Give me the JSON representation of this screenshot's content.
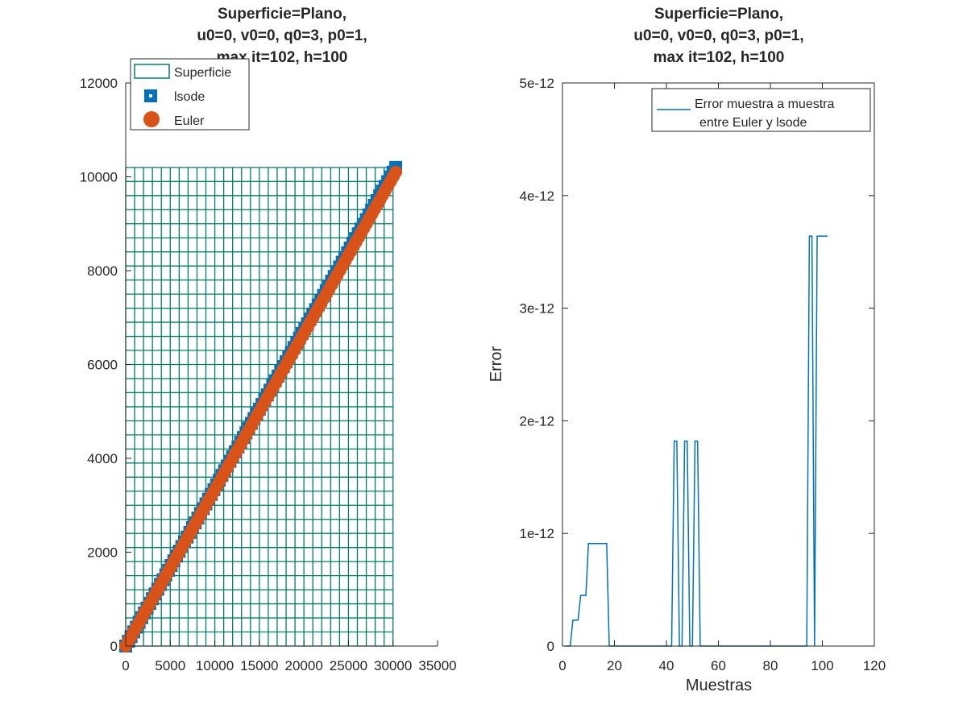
{
  "chart_data": [
    {
      "type": "scatter",
      "title_lines": [
        "Superficie=Plano,",
        "u0=0, v0=0, q0=3, p0=1,",
        "max it=102, h=100"
      ],
      "xlabel": "",
      "ylabel": "",
      "xlim": [
        0,
        35000
      ],
      "ylim": [
        0,
        12000
      ],
      "xticks": [
        0,
        5000,
        10000,
        15000,
        20000,
        25000,
        30000,
        35000
      ],
      "xtick_labels": [
        "0",
        "5000",
        "10000",
        "15000",
        "20000",
        "25000",
        "30000",
        "35000"
      ],
      "yticks": [
        0,
        2000,
        4000,
        6000,
        8000,
        10000,
        12000
      ],
      "ytick_labels": [
        "0",
        "2000",
        "4000",
        "6000",
        "8000",
        "10000",
        "12000"
      ],
      "legend_placement": "top-left",
      "series": [
        {
          "name": "Superficie",
          "kind": "mesh",
          "color": "#007f66",
          "x_range": [
            0,
            30000
          ],
          "y_range": [
            0,
            10200
          ],
          "x_step": 1000,
          "y_step": 300
        },
        {
          "name": "lsode",
          "kind": "square-markers",
          "color": "#0072bd",
          "x_start": 0,
          "x_end": 30300,
          "y_start": 0,
          "y_end": 10200,
          "count": 102
        },
        {
          "name": "Euler",
          "kind": "circle-markers",
          "color": "#d95319",
          "x_start": 0,
          "x_end": 30300,
          "y_start": 0,
          "y_end": 10100,
          "count": 102
        }
      ]
    },
    {
      "type": "line",
      "title_lines": [
        "Superficie=Plano,",
        "u0=0, v0=0, q0=3, p0=1,",
        "max it=102, h=100"
      ],
      "xlabel": "Muestras",
      "ylabel": "Error",
      "xlim": [
        0,
        120
      ],
      "ylim": [
        0,
        5e-12
      ],
      "xticks": [
        0,
        20,
        40,
        60,
        80,
        100,
        120
      ],
      "xtick_labels": [
        "0",
        "20",
        "40",
        "60",
        "80",
        "100",
        "120"
      ],
      "yticks": [
        0,
        1e-12,
        2e-12,
        3e-12,
        4e-12,
        5e-12
      ],
      "ytick_labels": [
        "0",
        "1e-12",
        "2e-12",
        "3e-12",
        "4e-12",
        "5e-12"
      ],
      "legend_placement": "top-right",
      "series": [
        {
          "name_lines": [
            "Error muestra a muestra",
            "entre Euler y lsode"
          ],
          "color": "#0072bd",
          "x": [
            1,
            2,
            3,
            4,
            5,
            6,
            7,
            8,
            9,
            10,
            11,
            12,
            13,
            14,
            15,
            16,
            17,
            18,
            19,
            20,
            25,
            30,
            35,
            40,
            42,
            43,
            44,
            45,
            46,
            47,
            48,
            49,
            50,
            51,
            52,
            53,
            54,
            55,
            56,
            57,
            60,
            70,
            80,
            90,
            94,
            95,
            96,
            97,
            98,
            99,
            100,
            101,
            102
          ],
          "y": [
            0,
            0,
            0,
            2.3e-13,
            2.3e-13,
            2.3e-13,
            4.5e-13,
            4.5e-13,
            4.5e-13,
            9.1e-13,
            9.1e-13,
            9.1e-13,
            9.1e-13,
            9.1e-13,
            9.1e-13,
            9.1e-13,
            9.1e-13,
            0,
            0,
            0,
            0,
            0,
            0,
            0,
            0,
            1.82e-12,
            1.82e-12,
            0,
            0,
            1.82e-12,
            1.82e-12,
            0,
            0,
            1.82e-12,
            1.82e-12,
            0,
            0,
            0,
            0,
            0,
            0,
            0,
            0,
            0,
            0,
            3.64e-12,
            3.64e-12,
            0,
            3.64e-12,
            3.64e-12,
            3.64e-12,
            3.64e-12,
            3.64e-12
          ]
        }
      ]
    }
  ]
}
